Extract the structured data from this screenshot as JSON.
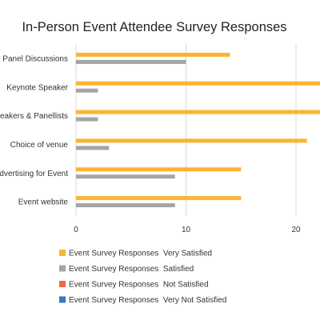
{
  "chart_data": {
    "type": "bar",
    "orientation": "horizontal",
    "title": "In-Person Event Attendee Survey Responses",
    "xlabel": "",
    "ylabel": "",
    "categories": [
      "Panel Discussions",
      "Keynote Speaker",
      "Speakers & Panellists",
      "Choice of venue",
      "Advertising for Event",
      "Event website"
    ],
    "xlim": [
      0,
      22
    ],
    "xticks": [
      0,
      10,
      20
    ],
    "grid": true,
    "legend_position": "bottom",
    "series": [
      {
        "name": "Event Survey Responses  Very Satisfied",
        "color": "#fbb431",
        "values": [
          14,
          23,
          23,
          21,
          15,
          15
        ]
      },
      {
        "name": "Event Survey Responses  Satisfied",
        "color": "#a5a5a5",
        "values": [
          10,
          2,
          2,
          3,
          9,
          9
        ]
      },
      {
        "name": "Event Survey Responses  Not Satisfied",
        "color": "#ee6a3d",
        "values": [
          0,
          0,
          0,
          0,
          0,
          0
        ]
      },
      {
        "name": "Event Survey Responses  Very Not Satisfied",
        "color": "#3a74c4",
        "values": [
          0,
          0,
          0,
          0,
          0,
          0
        ]
      }
    ]
  }
}
